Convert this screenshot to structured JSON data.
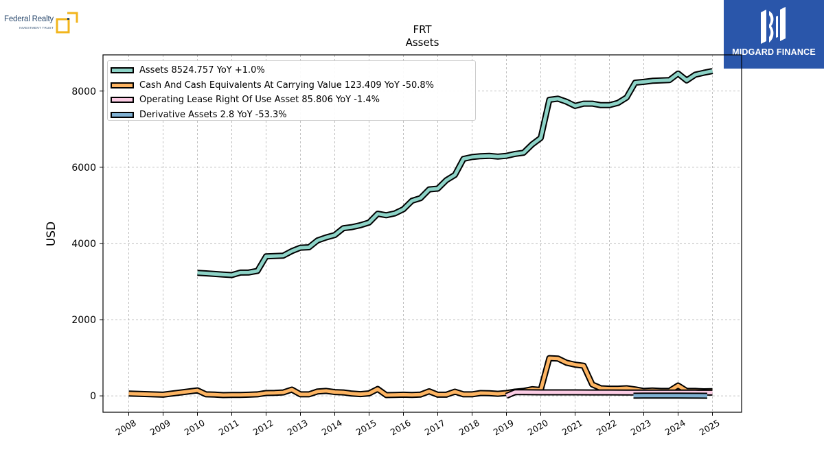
{
  "branding": {
    "left_logo_name": "Federal Realty",
    "left_logo_sub": "INVESTMENT TRUST",
    "left_logo_color": "#2b4a6e",
    "left_logo_accent": "#f2b51c",
    "right_logo_name": "MIDGARD FINANCE",
    "right_logo_bg": "#2a56aa"
  },
  "chart_data": {
    "type": "line",
    "title": "FRT",
    "subtitle": "Assets",
    "xlabel": "",
    "ylabel": "USD",
    "xlim": [
      2007.25,
      2025.85
    ],
    "ylim": [
      -430,
      8950
    ],
    "xticks": [
      2008,
      2009,
      2010,
      2011,
      2012,
      2013,
      2014,
      2015,
      2016,
      2017,
      2018,
      2019,
      2020,
      2021,
      2022,
      2023,
      2024,
      2025
    ],
    "xtick_labels": [
      "2008",
      "2009",
      "2010",
      "2011",
      "2012",
      "2013",
      "2014",
      "2015",
      "2016",
      "2017",
      "2018",
      "2019",
      "2020",
      "2021",
      "2022",
      "2023",
      "2024",
      "2025"
    ],
    "yticks": [
      0,
      2000,
      4000,
      6000,
      8000
    ],
    "ytick_labels": [
      "0",
      "2000",
      "4000",
      "6000",
      "8000"
    ],
    "grid": true,
    "legend_position": "top-left",
    "series": [
      {
        "name": "Assets",
        "legend_label": "Assets  8524.757 YoY +1.0%",
        "color": "#8dd3c7",
        "points": [
          [
            2010.0,
            3230
          ],
          [
            2010.25,
            3215
          ],
          [
            2010.5,
            3200
          ],
          [
            2010.75,
            3185
          ],
          [
            2011.0,
            3170
          ],
          [
            2011.25,
            3235
          ],
          [
            2011.5,
            3240
          ],
          [
            2011.75,
            3280
          ],
          [
            2012.0,
            3660
          ],
          [
            2012.25,
            3670
          ],
          [
            2012.5,
            3680
          ],
          [
            2012.75,
            3800
          ],
          [
            2013.0,
            3890
          ],
          [
            2013.25,
            3900
          ],
          [
            2013.5,
            4080
          ],
          [
            2013.75,
            4160
          ],
          [
            2014.0,
            4220
          ],
          [
            2014.25,
            4400
          ],
          [
            2014.5,
            4430
          ],
          [
            2014.75,
            4480
          ],
          [
            2015.0,
            4550
          ],
          [
            2015.25,
            4780
          ],
          [
            2015.5,
            4740
          ],
          [
            2015.75,
            4790
          ],
          [
            2016.0,
            4900
          ],
          [
            2016.25,
            5120
          ],
          [
            2016.5,
            5190
          ],
          [
            2016.75,
            5420
          ],
          [
            2017.0,
            5440
          ],
          [
            2017.25,
            5660
          ],
          [
            2017.5,
            5800
          ],
          [
            2017.75,
            6220
          ],
          [
            2018.0,
            6270
          ],
          [
            2018.25,
            6290
          ],
          [
            2018.5,
            6300
          ],
          [
            2018.75,
            6280
          ],
          [
            2019.0,
            6300
          ],
          [
            2019.25,
            6350
          ],
          [
            2019.5,
            6380
          ],
          [
            2019.75,
            6600
          ],
          [
            2020.0,
            6770
          ],
          [
            2020.25,
            7770
          ],
          [
            2020.5,
            7800
          ],
          [
            2020.75,
            7720
          ],
          [
            2021.0,
            7610
          ],
          [
            2021.25,
            7670
          ],
          [
            2021.5,
            7670
          ],
          [
            2021.75,
            7630
          ],
          [
            2022.0,
            7630
          ],
          [
            2022.25,
            7690
          ],
          [
            2022.5,
            7830
          ],
          [
            2022.75,
            8220
          ],
          [
            2023.0,
            8240
          ],
          [
            2023.25,
            8270
          ],
          [
            2023.5,
            8280
          ],
          [
            2023.75,
            8290
          ],
          [
            2024.0,
            8460
          ],
          [
            2024.25,
            8280
          ],
          [
            2024.5,
            8430
          ],
          [
            2024.75,
            8480
          ],
          [
            2025.0,
            8524.757
          ]
        ]
      },
      {
        "name": "Cash And Cash Equivalents At Carrying Value",
        "legend_label": "Cash And Cash Equivalents At Carrying Value  123.409 YoY -50.8%",
        "color": "#fdb462",
        "points": [
          [
            2008.0,
            60
          ],
          [
            2009.0,
            30
          ],
          [
            2010.0,
            145
          ],
          [
            2010.25,
            40
          ],
          [
            2010.5,
            35
          ],
          [
            2010.75,
            20
          ],
          [
            2011.0,
            25
          ],
          [
            2011.25,
            25
          ],
          [
            2011.5,
            30
          ],
          [
            2011.75,
            40
          ],
          [
            2012.0,
            75
          ],
          [
            2012.25,
            80
          ],
          [
            2012.5,
            90
          ],
          [
            2012.75,
            165
          ],
          [
            2013.0,
            40
          ],
          [
            2013.25,
            40
          ],
          [
            2013.5,
            115
          ],
          [
            2013.75,
            130
          ],
          [
            2014.0,
            100
          ],
          [
            2014.25,
            90
          ],
          [
            2014.5,
            60
          ],
          [
            2014.75,
            45
          ],
          [
            2015.0,
            65
          ],
          [
            2015.25,
            180
          ],
          [
            2015.5,
            20
          ],
          [
            2015.75,
            25
          ],
          [
            2016.0,
            30
          ],
          [
            2016.25,
            25
          ],
          [
            2016.5,
            35
          ],
          [
            2016.75,
            120
          ],
          [
            2017.0,
            30
          ],
          [
            2017.25,
            30
          ],
          [
            2017.5,
            110
          ],
          [
            2017.75,
            40
          ],
          [
            2018.0,
            40
          ],
          [
            2018.25,
            75
          ],
          [
            2018.5,
            70
          ],
          [
            2018.75,
            55
          ],
          [
            2019.0,
            75
          ],
          [
            2019.25,
            110
          ],
          [
            2019.5,
            130
          ],
          [
            2019.75,
            175
          ],
          [
            2020.0,
            155
          ],
          [
            2020.25,
            990
          ],
          [
            2020.5,
            980
          ],
          [
            2020.75,
            870
          ],
          [
            2021.0,
            820
          ],
          [
            2021.25,
            790
          ],
          [
            2021.5,
            300
          ],
          [
            2021.75,
            200
          ],
          [
            2022.0,
            190
          ],
          [
            2022.25,
            190
          ],
          [
            2022.5,
            200
          ],
          [
            2022.75,
            170
          ],
          [
            2023.0,
            130
          ],
          [
            2023.25,
            140
          ],
          [
            2023.5,
            130
          ],
          [
            2023.75,
            130
          ],
          [
            2024.0,
            270
          ],
          [
            2024.25,
            130
          ],
          [
            2024.5,
            130
          ],
          [
            2024.75,
            120
          ],
          [
            2025.0,
            123.409
          ]
        ]
      },
      {
        "name": "Operating Lease Right Of Use Asset",
        "legend_label": "Operating Lease Right Of Use Asset  85.806 YoY -1.4%",
        "color": "#fccde5",
        "points": [
          [
            2019.0,
            0
          ],
          [
            2019.25,
            95
          ],
          [
            2019.5,
            95
          ],
          [
            2019.75,
            94
          ],
          [
            2020.0,
            93
          ],
          [
            2020.5,
            93
          ],
          [
            2021.0,
            92
          ],
          [
            2021.5,
            90
          ],
          [
            2022.0,
            90
          ],
          [
            2022.5,
            89
          ],
          [
            2023.0,
            88
          ],
          [
            2023.5,
            88
          ],
          [
            2024.0,
            87
          ],
          [
            2024.5,
            87
          ],
          [
            2025.0,
            85.806
          ]
        ]
      },
      {
        "name": "Derivative Assets",
        "legend_label": "Derivative Assets  2.8 YoY -53.3%",
        "color": "#80b1d3",
        "points": [
          [
            2022.7,
            3
          ],
          [
            2023.0,
            5
          ],
          [
            2023.5,
            6
          ],
          [
            2024.0,
            6
          ],
          [
            2024.5,
            4
          ],
          [
            2024.85,
            2.8
          ]
        ]
      }
    ]
  }
}
